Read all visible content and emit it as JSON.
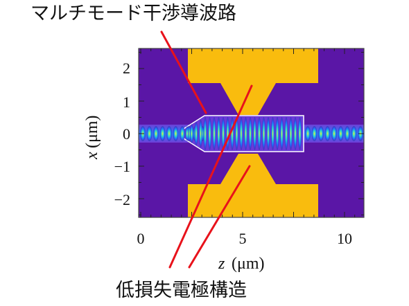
{
  "labels": {
    "top": "マルチモード干渉導波路",
    "bottom": "低損失電極構造"
  },
  "axes": {
    "xlabel_var": "z",
    "xlabel_unit": "(μm)",
    "ylabel_var": "x",
    "ylabel_unit": "(μm)",
    "xticks": [
      "0",
      "5",
      "10"
    ],
    "yticks": [
      "2",
      "1",
      "0",
      "−1",
      "−2"
    ]
  },
  "colors": {
    "background_field": "#5a16a6",
    "electrode": "#f9bc0e",
    "pointer": "#e8121b",
    "waveguide": "#21c7e8"
  }
}
